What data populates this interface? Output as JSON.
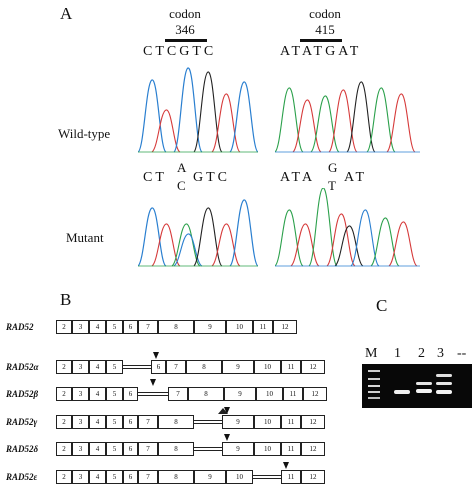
{
  "panel_a": {
    "letter": "A",
    "codon_left": {
      "label": "codon",
      "number": "346"
    },
    "codon_right": {
      "label": "codon",
      "number": "415"
    },
    "wt_seq_left": "CTCGTC",
    "wt_seq_right": "ATATGAT",
    "wild_type_label": "Wild-type",
    "mutant_label": "Mutant",
    "mut_left": {
      "pre": "CT",
      "top": "A",
      "bottom": "C",
      "post": "GTC"
    },
    "mut_right": {
      "pre": "ATA",
      "top": "G",
      "bottom": "T",
      "post": "AT"
    }
  },
  "panel_b": {
    "letter": "B",
    "rows": [
      {
        "name": "RAD52",
        "exons": [
          "2",
          "3",
          "4",
          "5",
          "6",
          "7",
          "8",
          "9",
          "10",
          "11",
          "12"
        ]
      },
      {
        "name": "RAD52α",
        "exons": [
          "2",
          "3",
          "4",
          "5",
          "6",
          "7",
          "8",
          "9",
          "10",
          "11",
          "12"
        ]
      },
      {
        "name": "RAD52β",
        "exons": [
          "2",
          "3",
          "4",
          "5",
          "6",
          "7",
          "8",
          "9",
          "10",
          "11",
          "12"
        ]
      },
      {
        "name": "RAD52γ",
        "exons": [
          "2",
          "3",
          "4",
          "5",
          "6",
          "7",
          "8",
          "9",
          "10",
          "11",
          "12"
        ]
      },
      {
        "name": "RAD52δ",
        "exons": [
          "2",
          "3",
          "4",
          "5",
          "6",
          "7",
          "8",
          "9",
          "10",
          "11",
          "12"
        ]
      },
      {
        "name": "RAD52ε",
        "exons": [
          "2",
          "3",
          "4",
          "5",
          "6",
          "7",
          "8",
          "9",
          "10",
          "11",
          "12"
        ]
      }
    ]
  },
  "panel_c": {
    "letter": "C",
    "lanes": [
      "M",
      "1",
      "2",
      "3",
      "--"
    ]
  }
}
